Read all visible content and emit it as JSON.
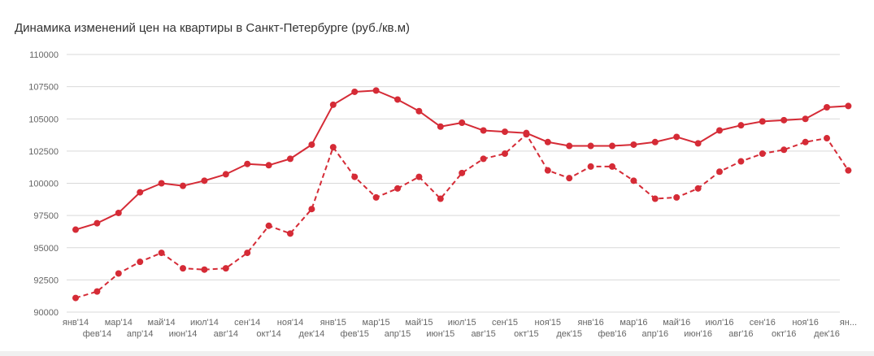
{
  "chart_data": {
    "type": "line",
    "title": "Динамика изменений цен на квартиры в Санкт-Петербурге (руб./кв.м)",
    "xlabel": "",
    "ylabel": "",
    "ylim": [
      90000,
      110000
    ],
    "yticks": [
      "110000",
      "107500",
      "105000",
      "102500",
      "100000",
      "97500",
      "95000",
      "92500",
      "90000"
    ],
    "grid": true,
    "categories": [
      "янв'14",
      "фев'14",
      "мар'14",
      "апр'14",
      "май'14",
      "июн'14",
      "июл'14",
      "авг'14",
      "сен'14",
      "окт'14",
      "ноя'14",
      "дек'14",
      "янв'15",
      "фев'15",
      "мар'15",
      "апр'15",
      "май'15",
      "июн'15",
      "июл'15",
      "авг'15",
      "сен'15",
      "окт'15",
      "ноя'15",
      "дек'15",
      "янв'16",
      "фев'16",
      "мар'16",
      "апр'16",
      "май'16",
      "июн'16",
      "июл'16",
      "авг'16",
      "сен'16",
      "окт'16",
      "ноя'16",
      "дек'16",
      "ян..."
    ],
    "series": [
      {
        "style": "solid",
        "color": "#d52b36",
        "values": [
          96400,
          96900,
          97700,
          99300,
          100000,
          99800,
          100200,
          100700,
          101500,
          101400,
          101900,
          103000,
          106100,
          107100,
          107200,
          106500,
          105600,
          104400,
          104700,
          104100,
          104000,
          103900,
          103200,
          102900,
          102900,
          102900,
          103000,
          103200,
          103600,
          103100,
          104100,
          104500,
          104800,
          104900,
          105000,
          105900,
          106000
        ]
      },
      {
        "style": "dashed",
        "color": "#d52b36",
        "values": [
          91100,
          91600,
          93000,
          93900,
          94600,
          93400,
          93300,
          93400,
          94600,
          96700,
          96100,
          98000,
          102800,
          100500,
          98900,
          99600,
          100500,
          98800,
          100800,
          101900,
          102300,
          103800,
          101000,
          100400,
          101300,
          101300,
          100200,
          98800,
          98900,
          99600,
          100900,
          101700,
          102300,
          102600,
          103200,
          103500,
          101000
        ]
      }
    ]
  }
}
